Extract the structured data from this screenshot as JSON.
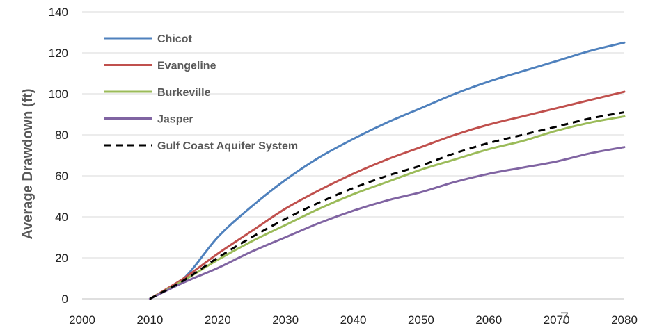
{
  "chart_data": {
    "type": "line",
    "ylabel": "Average Drawdown (ft)",
    "xlabel": "",
    "xlim": [
      2000,
      2080
    ],
    "ylim": [
      0,
      140
    ],
    "xticks": [
      2000,
      2010,
      2020,
      2030,
      2040,
      2050,
      2060,
      2070,
      2080
    ],
    "yticks": [
      0,
      20,
      40,
      60,
      80,
      100,
      120,
      140
    ],
    "grid": "horizontal",
    "legend": "top-left",
    "stray_text": "7",
    "series": [
      {
        "name": "Chicot",
        "color": "#4f81bd",
        "dash": false,
        "x": [
          2010,
          2015,
          2020,
          2025,
          2030,
          2035,
          2040,
          2045,
          2050,
          2055,
          2060,
          2065,
          2070,
          2075,
          2080
        ],
        "y": [
          0,
          10,
          30,
          45,
          58,
          69,
          78,
          86,
          93,
          100,
          106,
          111,
          116,
          121,
          125
        ]
      },
      {
        "name": "Evangeline",
        "color": "#c0504d",
        "dash": false,
        "x": [
          2010,
          2015,
          2020,
          2025,
          2030,
          2035,
          2040,
          2045,
          2050,
          2055,
          2060,
          2065,
          2070,
          2075,
          2080
        ],
        "y": [
          0,
          10,
          22,
          33,
          44,
          53,
          61,
          68,
          74,
          80,
          85,
          89,
          93,
          97,
          101
        ]
      },
      {
        "name": "Burkeville",
        "color": "#9bbb59",
        "dash": false,
        "x": [
          2010,
          2015,
          2020,
          2025,
          2030,
          2035,
          2040,
          2045,
          2050,
          2055,
          2060,
          2065,
          2070,
          2075,
          2080
        ],
        "y": [
          0,
          9,
          19,
          28,
          36,
          44,
          51,
          57,
          63,
          68,
          73,
          77,
          82,
          86,
          89
        ]
      },
      {
        "name": "Jasper",
        "color": "#8064a2",
        "dash": false,
        "x": [
          2010,
          2015,
          2020,
          2025,
          2030,
          2035,
          2040,
          2045,
          2050,
          2055,
          2060,
          2065,
          2070,
          2075,
          2080
        ],
        "y": [
          0,
          8,
          15,
          23,
          30,
          37,
          43,
          48,
          52,
          57,
          61,
          64,
          67,
          71,
          74
        ]
      },
      {
        "name": "Gulf Coast Aquifer System",
        "color": "#000000",
        "dash": true,
        "x": [
          2010,
          2015,
          2020,
          2025,
          2030,
          2035,
          2040,
          2045,
          2050,
          2055,
          2060,
          2065,
          2070,
          2075,
          2080
        ],
        "y": [
          0,
          9,
          20,
          30,
          39,
          47,
          54,
          60,
          65,
          71,
          76,
          80,
          84,
          88,
          91
        ]
      }
    ]
  }
}
